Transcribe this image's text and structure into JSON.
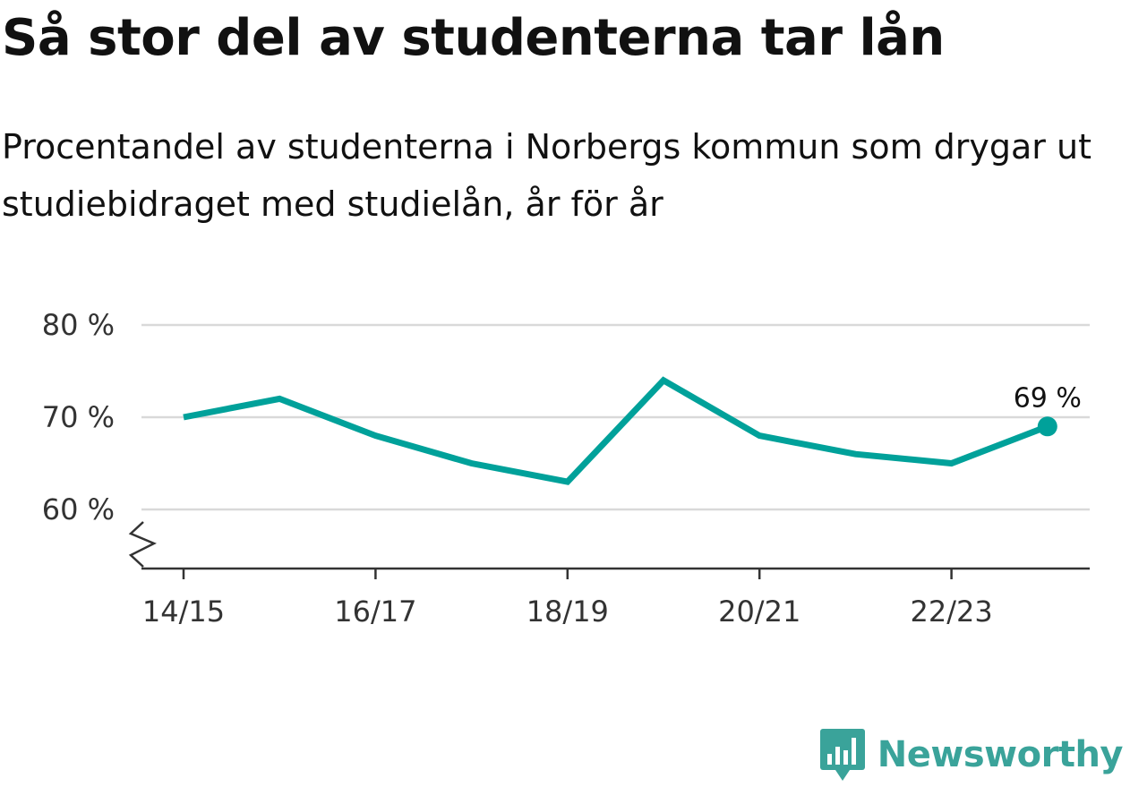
{
  "header": {
    "title": "Så stor del av studenterna tar lån",
    "subtitle": "Procentandel av studenterna i Norbergs kommun som drygar ut studiebidraget med studielån, år för år"
  },
  "brand": {
    "name": "Newsworthy",
    "icon": "bar-chart-speech-bubble-icon",
    "color": "#3aa39a"
  },
  "chart_data": {
    "type": "line",
    "x": [
      "14/15",
      "15/16",
      "16/17",
      "17/18",
      "18/19",
      "19/20",
      "20/21",
      "21/22",
      "22/23",
      "23/24"
    ],
    "series": [
      {
        "values": [
          70,
          72,
          68,
          65,
          63,
          74,
          68,
          66,
          65,
          69
        ],
        "color": "#00a19a"
      }
    ],
    "x_tick_labels": [
      "14/15",
      "16/17",
      "18/19",
      "20/21",
      "22/23"
    ],
    "y_ticks": [
      60,
      70,
      80
    ],
    "y_tick_labels": [
      "60 %",
      "70 %",
      "80 %"
    ],
    "ylim": [
      53.5,
      80
    ],
    "grid": true,
    "y_axis_break": true,
    "annotations": [
      {
        "x": "23/24",
        "text": "69 %"
      }
    ]
  }
}
